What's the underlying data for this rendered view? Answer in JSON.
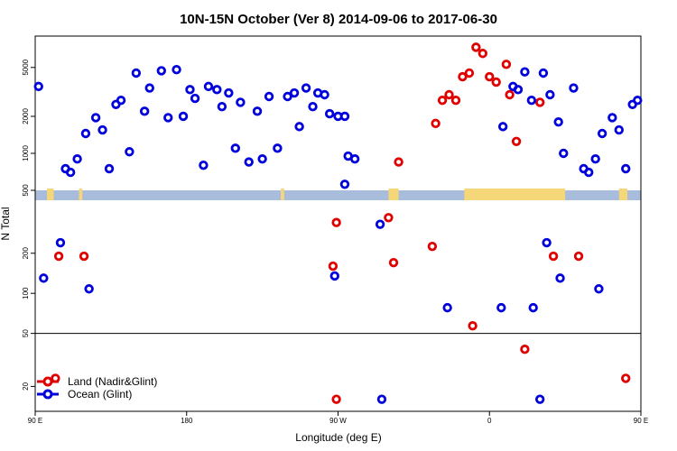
{
  "chart_data": {
    "type": "scatter",
    "title": "10N-15N October (Ver 8)   2014-09-06 to 2017-06-30",
    "xlabel": "Longitude (deg E)",
    "ylabel": "N Total",
    "xlim": [
      90,
      450
    ],
    "y_scale": "log",
    "x_ticks": [
      {
        "value": 90,
        "label": "90 E"
      },
      {
        "value": 180,
        "label": "180"
      },
      {
        "value": 270,
        "label": "90 W"
      },
      {
        "value": 360,
        "label": "0"
      },
      {
        "value": 450,
        "label": "90 E"
      },
      {
        "value": 540,
        "label": "180"
      }
    ],
    "upper_panel": {
      "ylim": [
        500,
        9000
      ],
      "y_ticks": [
        500,
        1000,
        2000,
        5000
      ]
    },
    "lower_panel": {
      "ylim": [
        13,
        500
      ],
      "y_ticks": [
        20,
        50,
        100,
        200
      ],
      "divider": 50
    },
    "colors": {
      "land": "#e00000",
      "ocean": "#0000dd",
      "ocean_strip": "#a8bcdc",
      "land_strip": "#f5d77a"
    },
    "land_strip_spans": [
      [
        97,
        101
      ],
      [
        116,
        118
      ],
      [
        236,
        238
      ],
      [
        300,
        306
      ],
      [
        345,
        405
      ],
      [
        437,
        442
      ]
    ],
    "legend": {
      "position": "bottom-left",
      "entries": [
        {
          "name": "Land (Nadir&Glint)",
          "color": "#e00000"
        },
        {
          "name": "Ocean (Glint)",
          "color": "#0000dd"
        }
      ]
    },
    "series": [
      {
        "name": "Land (Nadir&Glint)",
        "color": "#e00000",
        "points": [
          {
            "x": 104,
            "y": 190
          },
          {
            "x": 119,
            "y": 190
          },
          {
            "x": 306,
            "y": 850
          },
          {
            "x": 328,
            "y": 1750
          },
          {
            "x": 332,
            "y": 2700
          },
          {
            "x": 336,
            "y": 3000
          },
          {
            "x": 340,
            "y": 2700
          },
          {
            "x": 344,
            "y": 4200
          },
          {
            "x": 348,
            "y": 4500
          },
          {
            "x": 352,
            "y": 7300
          },
          {
            "x": 356,
            "y": 6500
          },
          {
            "x": 360,
            "y": 4200
          },
          {
            "x": 364,
            "y": 3800
          },
          {
            "x": 370,
            "y": 5300
          },
          {
            "x": 372,
            "y": 3000
          },
          {
            "x": 376,
            "y": 1250
          },
          {
            "x": 390,
            "y": 2600
          },
          {
            "x": 267,
            "y": 160
          },
          {
            "x": 269,
            "y": 340
          },
          {
            "x": 300,
            "y": 370
          },
          {
            "x": 303,
            "y": 170
          },
          {
            "x": 326,
            "y": 225
          },
          {
            "x": 350,
            "y": 57
          },
          {
            "x": 398,
            "y": 190
          },
          {
            "x": 413,
            "y": 190
          },
          {
            "x": 102,
            "y": 23
          },
          {
            "x": 269,
            "y": 16
          },
          {
            "x": 381,
            "y": 38
          },
          {
            "x": 441,
            "y": 23
          }
        ]
      },
      {
        "name": "Ocean (Glint)",
        "color": "#0000dd",
        "points": [
          {
            "x": 92,
            "y": 3500
          },
          {
            "x": 108,
            "y": 750
          },
          {
            "x": 111,
            "y": 700
          },
          {
            "x": 115,
            "y": 900
          },
          {
            "x": 120,
            "y": 1450
          },
          {
            "x": 126,
            "y": 1950
          },
          {
            "x": 130,
            "y": 1550
          },
          {
            "x": 134,
            "y": 750
          },
          {
            "x": 138,
            "y": 2500
          },
          {
            "x": 141,
            "y": 2700
          },
          {
            "x": 146,
            "y": 1030
          },
          {
            "x": 150,
            "y": 4500
          },
          {
            "x": 155,
            "y": 2200
          },
          {
            "x": 158,
            "y": 3400
          },
          {
            "x": 165,
            "y": 4700
          },
          {
            "x": 169,
            "y": 1950
          },
          {
            "x": 174,
            "y": 4800
          },
          {
            "x": 178,
            "y": 2000
          },
          {
            "x": 182,
            "y": 3300
          },
          {
            "x": 185,
            "y": 2800
          },
          {
            "x": 190,
            "y": 800
          },
          {
            "x": 193,
            "y": 3500
          },
          {
            "x": 198,
            "y": 3300
          },
          {
            "x": 201,
            "y": 2400
          },
          {
            "x": 205,
            "y": 3100
          },
          {
            "x": 209,
            "y": 1100
          },
          {
            "x": 212,
            "y": 2600
          },
          {
            "x": 217,
            "y": 850
          },
          {
            "x": 222,
            "y": 2200
          },
          {
            "x": 225,
            "y": 900
          },
          {
            "x": 229,
            "y": 2900
          },
          {
            "x": 234,
            "y": 1100
          },
          {
            "x": 240,
            "y": 2900
          },
          {
            "x": 244,
            "y": 3100
          },
          {
            "x": 247,
            "y": 1650
          },
          {
            "x": 251,
            "y": 3400
          },
          {
            "x": 255,
            "y": 2400
          },
          {
            "x": 258,
            "y": 3100
          },
          {
            "x": 262,
            "y": 3000
          },
          {
            "x": 265,
            "y": 2100
          },
          {
            "x": 270,
            "y": 2000
          },
          {
            "x": 274,
            "y": 2000
          },
          {
            "x": 276,
            "y": 950
          },
          {
            "x": 280,
            "y": 900
          },
          {
            "x": 368,
            "y": 1650
          },
          {
            "x": 374,
            "y": 3500
          },
          {
            "x": 377,
            "y": 3300
          },
          {
            "x": 381,
            "y": 4600
          },
          {
            "x": 385,
            "y": 2700
          },
          {
            "x": 392,
            "y": 4500
          },
          {
            "x": 396,
            "y": 3000
          },
          {
            "x": 401,
            "y": 1800
          },
          {
            "x": 404,
            "y": 1000
          },
          {
            "x": 410,
            "y": 3400
          },
          {
            "x": 416,
            "y": 750
          },
          {
            "x": 419,
            "y": 700
          },
          {
            "x": 423,
            "y": 900
          },
          {
            "x": 427,
            "y": 1450
          },
          {
            "x": 433,
            "y": 1950
          },
          {
            "x": 437,
            "y": 1550
          },
          {
            "x": 441,
            "y": 750
          },
          {
            "x": 445,
            "y": 2500
          },
          {
            "x": 448,
            "y": 2700
          },
          {
            "x": 95,
            "y": 130
          },
          {
            "x": 105,
            "y": 240
          },
          {
            "x": 122,
            "y": 108
          },
          {
            "x": 268,
            "y": 135
          },
          {
            "x": 274,
            "y": 560
          },
          {
            "x": 295,
            "y": 330
          },
          {
            "x": 335,
            "y": 78
          },
          {
            "x": 367,
            "y": 78
          },
          {
            "x": 386,
            "y": 78
          },
          {
            "x": 394,
            "y": 240
          },
          {
            "x": 402,
            "y": 130
          },
          {
            "x": 425,
            "y": 108
          },
          {
            "x": 296,
            "y": 16
          },
          {
            "x": 390,
            "y": 16
          }
        ]
      }
    ]
  }
}
